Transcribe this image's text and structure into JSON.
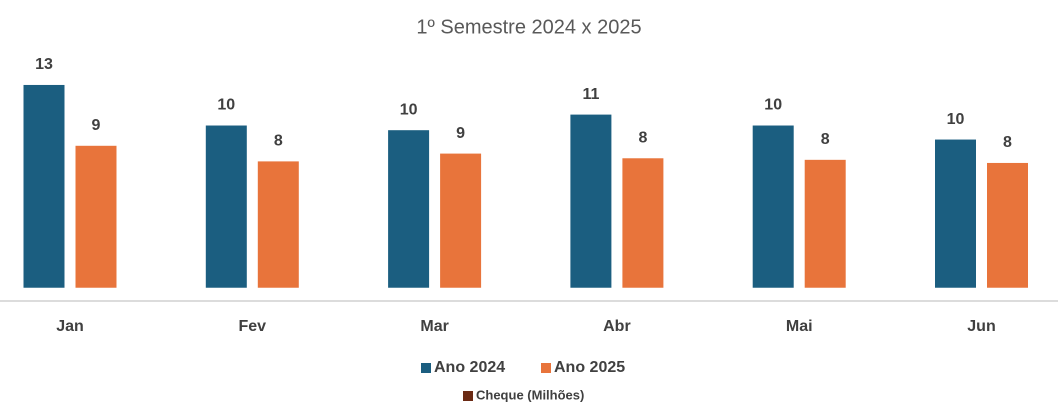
{
  "chart_data": {
    "type": "bar",
    "title": "1º Semestre 2024 x 2025",
    "categories": [
      "Jan",
      "Fev",
      "Mar",
      "Abr",
      "Mai",
      "Jun"
    ],
    "series": [
      {
        "name": "Ano 2024",
        "color": "#1b5e80",
        "values": [
          13.0,
          10.4,
          10.1,
          11.1,
          10.4,
          9.5
        ],
        "value_labels": [
          "13",
          "10",
          "10",
          "11",
          "10",
          "10"
        ]
      },
      {
        "name": "Ano 2025",
        "color": "#e8743b",
        "values": [
          9.1,
          8.1,
          8.6,
          8.3,
          8.2,
          8.0
        ],
        "value_labels": [
          "9",
          "8",
          "9",
          "8",
          "8",
          "8"
        ]
      },
      {
        "name": "Cheque (Milhões)",
        "color": "#6b2a14",
        "values": [
          null,
          null,
          null,
          null,
          null,
          null
        ]
      }
    ],
    "ylim": [
      -0.85,
      14.6
    ]
  }
}
